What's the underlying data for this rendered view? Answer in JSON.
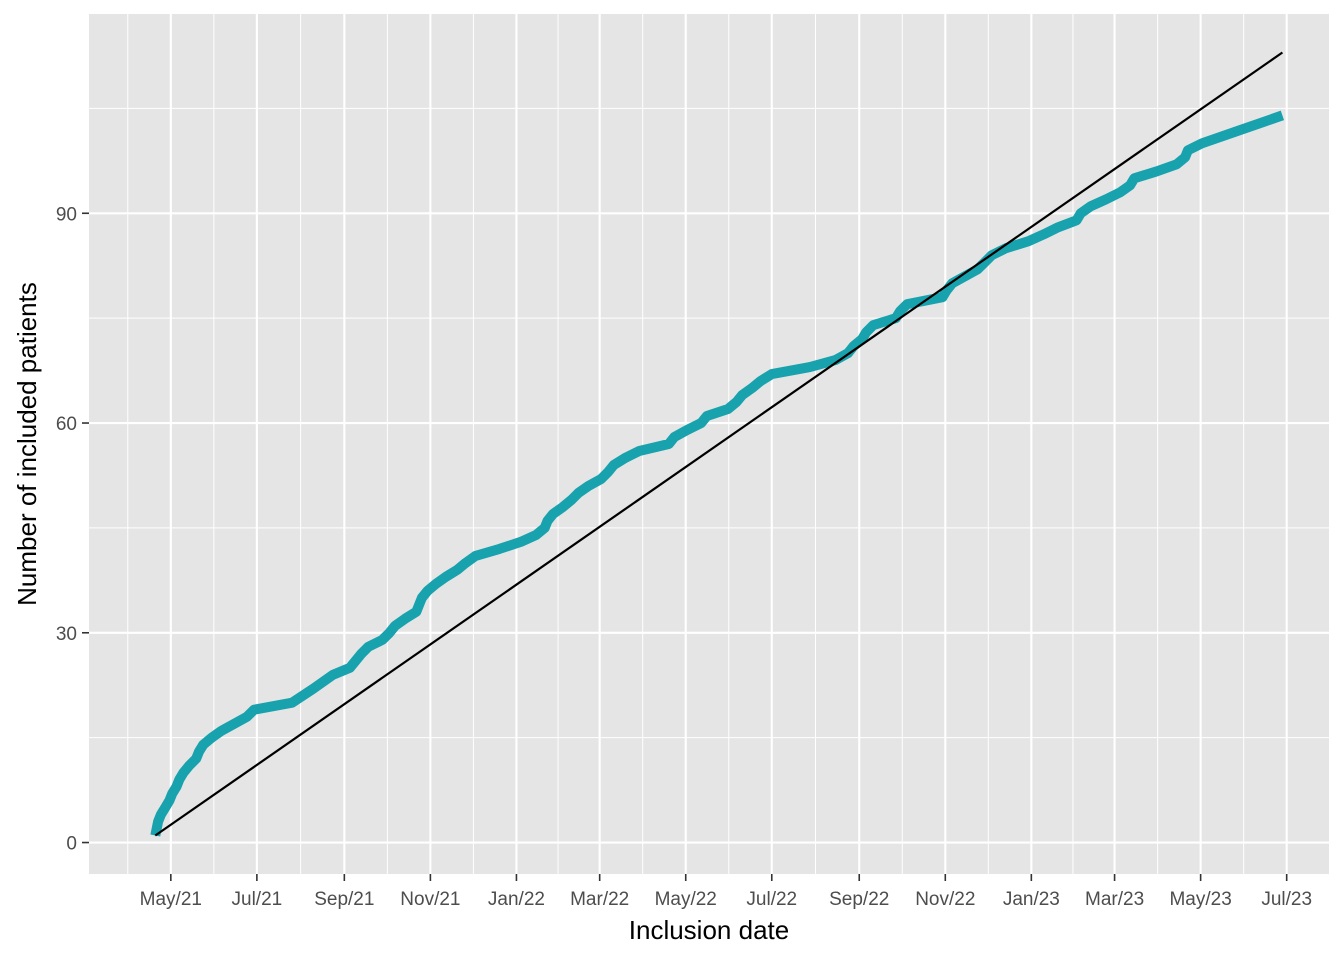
{
  "chart_data": {
    "type": "line",
    "title": "",
    "xlabel": "Inclusion date",
    "ylabel": "Number of included patients",
    "xlim": [
      "2021-03-04",
      "2023-07-31"
    ],
    "ylim": [
      -4.5,
      118.5
    ],
    "grid": true,
    "legend": "none",
    "x_ticks": [
      {
        "date": "2021-05-01",
        "label": "May/21"
      },
      {
        "date": "2021-07-01",
        "label": "Jul/21"
      },
      {
        "date": "2021-09-01",
        "label": "Sep/21"
      },
      {
        "date": "2021-11-01",
        "label": "Nov/21"
      },
      {
        "date": "2022-01-01",
        "label": "Jan/22"
      },
      {
        "date": "2022-03-01",
        "label": "Mar/22"
      },
      {
        "date": "2022-05-01",
        "label": "May/22"
      },
      {
        "date": "2022-07-01",
        "label": "Jul/22"
      },
      {
        "date": "2022-09-01",
        "label": "Sep/22"
      },
      {
        "date": "2022-11-01",
        "label": "Nov/22"
      },
      {
        "date": "2023-01-01",
        "label": "Jan/23"
      },
      {
        "date": "2023-03-01",
        "label": "Mar/23"
      },
      {
        "date": "2023-05-01",
        "label": "May/23"
      },
      {
        "date": "2023-07-01",
        "label": "Jul/23"
      }
    ],
    "y_ticks": [
      0,
      30,
      60,
      90
    ],
    "colors": {
      "actual": "#17a2ad",
      "target": "#000000",
      "panel": "#e5e5e5",
      "grid": "#ffffff"
    },
    "series": [
      {
        "key": "actual",
        "x": [
          "2021-04-20",
          "2021-04-22",
          "2021-04-24",
          "2021-04-27",
          "2021-04-30",
          "2021-05-02",
          "2021-05-05",
          "2021-05-07",
          "2021-05-10",
          "2021-05-14",
          "2021-05-19",
          "2021-05-21",
          "2021-05-24",
          "2021-05-30",
          "2021-06-06",
          "2021-06-15",
          "2021-06-24",
          "2021-06-29",
          "2021-07-26",
          "2021-08-10",
          "2021-08-17",
          "2021-08-24",
          "2021-09-05",
          "2021-09-13",
          "2021-09-18",
          "2021-09-28",
          "2021-10-03",
          "2021-10-07",
          "2021-10-14",
          "2021-10-22",
          "2021-10-26",
          "2021-10-30",
          "2021-11-05",
          "2021-11-12",
          "2021-11-20",
          "2021-11-26",
          "2021-12-03",
          "2021-12-20",
          "2022-01-04",
          "2022-01-15",
          "2022-01-21",
          "2022-01-23",
          "2022-01-27",
          "2022-02-03",
          "2022-02-09",
          "2022-02-14",
          "2022-02-21",
          "2022-03-02",
          "2022-03-07",
          "2022-03-11",
          "2022-03-19",
          "2022-03-29",
          "2022-04-19",
          "2022-04-23",
          "2022-05-02",
          "2022-05-12",
          "2022-05-16",
          "2022-05-31",
          "2022-06-06",
          "2022-06-10",
          "2022-06-17",
          "2022-06-23",
          "2022-07-01",
          "2022-07-28",
          "2022-08-15",
          "2022-08-24",
          "2022-08-28",
          "2022-09-03",
          "2022-09-06",
          "2022-09-11",
          "2022-09-27",
          "2022-09-30",
          "2022-10-05",
          "2022-10-30",
          "2022-11-02",
          "2022-11-06",
          "2022-11-15",
          "2022-11-24",
          "2022-11-29",
          "2022-12-04",
          "2022-12-14",
          "2022-12-30",
          "2023-01-10",
          "2023-01-20",
          "2023-02-02",
          "2023-02-05",
          "2023-02-12",
          "2023-02-23",
          "2023-03-05",
          "2023-03-12",
          "2023-03-15",
          "2023-03-31",
          "2023-04-14",
          "2023-04-20",
          "2023-04-22",
          "2023-05-02",
          "2023-06-28"
        ],
        "y": [
          1,
          3,
          4,
          5,
          6,
          7,
          8,
          9,
          10,
          11,
          12,
          13,
          14,
          15,
          16,
          17,
          18,
          19,
          20,
          22,
          23,
          24,
          25,
          27,
          28,
          29,
          30,
          31,
          32,
          33,
          35,
          36,
          37,
          38,
          39,
          40,
          41,
          42,
          43,
          44,
          45,
          46,
          47,
          48,
          49,
          50,
          51,
          52,
          53,
          54,
          55,
          56,
          57,
          58,
          59,
          60,
          61,
          62,
          63,
          64,
          65,
          66,
          67,
          68,
          69,
          70,
          71,
          72,
          73,
          74,
          75,
          76,
          77,
          78,
          79,
          80,
          81,
          82,
          83,
          84,
          85,
          86,
          87,
          88,
          89,
          90,
          91,
          92,
          93,
          94,
          95,
          96,
          97,
          98,
          99,
          100,
          104
        ]
      },
      {
        "key": "target",
        "x": [
          "2021-04-20",
          "2023-06-28"
        ],
        "y": [
          1,
          113
        ]
      }
    ]
  }
}
